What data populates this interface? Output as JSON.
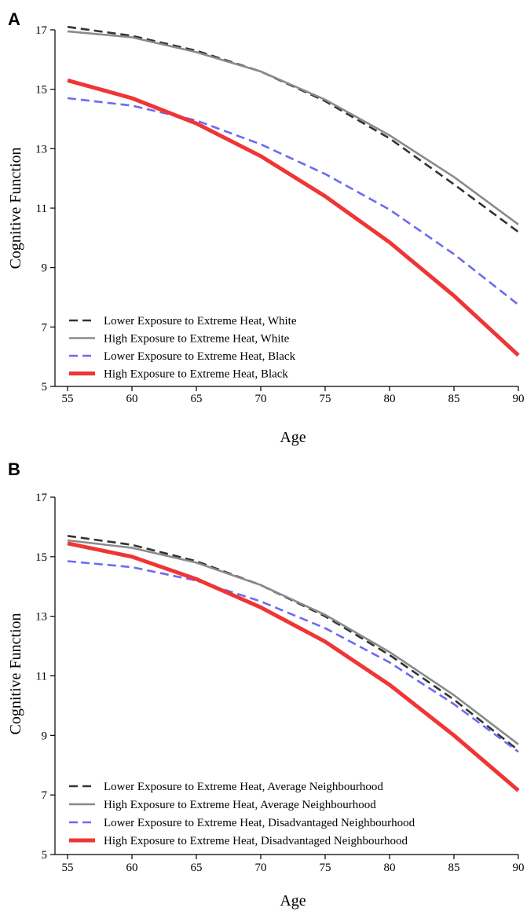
{
  "chart_data": [
    {
      "type": "line",
      "panel_label": "A",
      "xlabel": "Age",
      "ylabel": "Cognitive Function",
      "xlim": [
        55,
        90
      ],
      "ylim": [
        5,
        17
      ],
      "xticks": [
        55,
        60,
        65,
        70,
        75,
        80,
        85,
        90
      ],
      "yticks": [
        5,
        7,
        9,
        11,
        13,
        15,
        17
      ],
      "grid": false,
      "legend_position": "bottom-left",
      "x": [
        55,
        60,
        65,
        70,
        75,
        80,
        85,
        90
      ],
      "series": [
        {
          "name": "Lower Exposure to Extreme Heat, White",
          "color": "#333333",
          "style": "dashed",
          "width": "medium",
          "values": [
            17.1,
            16.8,
            16.3,
            15.6,
            14.6,
            13.35,
            11.8,
            10.2
          ]
        },
        {
          "name": "High Exposure to Extreme Heat, White",
          "color": "#8a8a8a",
          "style": "solid",
          "width": "medium",
          "values": [
            16.95,
            16.75,
            16.25,
            15.6,
            14.65,
            13.45,
            12.05,
            10.45
          ]
        },
        {
          "name": "Lower Exposure to Extreme Heat, Black",
          "color": "#6b6bf2",
          "style": "dashed",
          "width": "medium",
          "values": [
            14.7,
            14.45,
            13.95,
            13.15,
            12.15,
            10.95,
            9.45,
            7.75
          ]
        },
        {
          "name": "High Exposure to Extreme Heat, Black",
          "color": "#ef3535",
          "style": "solid",
          "width": "thick",
          "values": [
            15.3,
            14.7,
            13.85,
            12.75,
            11.4,
            9.85,
            8.05,
            6.05
          ]
        }
      ]
    },
    {
      "type": "line",
      "panel_label": "B",
      "xlabel": "Age",
      "ylabel": "Cognitive Function",
      "xlim": [
        55,
        90
      ],
      "ylim": [
        5,
        17
      ],
      "xticks": [
        55,
        60,
        65,
        70,
        75,
        80,
        85,
        90
      ],
      "yticks": [
        5,
        7,
        9,
        11,
        13,
        15,
        17
      ],
      "grid": false,
      "legend_position": "bottom-left",
      "x": [
        55,
        60,
        65,
        70,
        75,
        80,
        85,
        90
      ],
      "series": [
        {
          "name": "Lower Exposure to Extreme Heat, Average Neighbourhood",
          "color": "#333333",
          "style": "dashed",
          "width": "medium",
          "values": [
            15.7,
            15.4,
            14.85,
            14.05,
            13.0,
            11.7,
            10.2,
            8.5
          ]
        },
        {
          "name": "High Exposure to Extreme Heat, Average Neighbourhood",
          "color": "#8a8a8a",
          "style": "solid",
          "width": "medium",
          "values": [
            15.55,
            15.3,
            14.8,
            14.05,
            13.05,
            11.8,
            10.35,
            8.7
          ]
        },
        {
          "name": "Lower Exposure to Extreme Heat, Disadvantaged Neighbourhood",
          "color": "#6b6bf2",
          "style": "dashed",
          "width": "medium",
          "values": [
            14.85,
            14.65,
            14.2,
            13.5,
            12.6,
            11.45,
            10.05,
            8.45
          ]
        },
        {
          "name": "High Exposure to Extreme Heat, Disadvantaged Neighbourhood",
          "color": "#ef3535",
          "style": "solid",
          "width": "thick",
          "values": [
            15.45,
            15.0,
            14.25,
            13.3,
            12.15,
            10.7,
            9.0,
            7.15
          ]
        }
      ]
    }
  ]
}
